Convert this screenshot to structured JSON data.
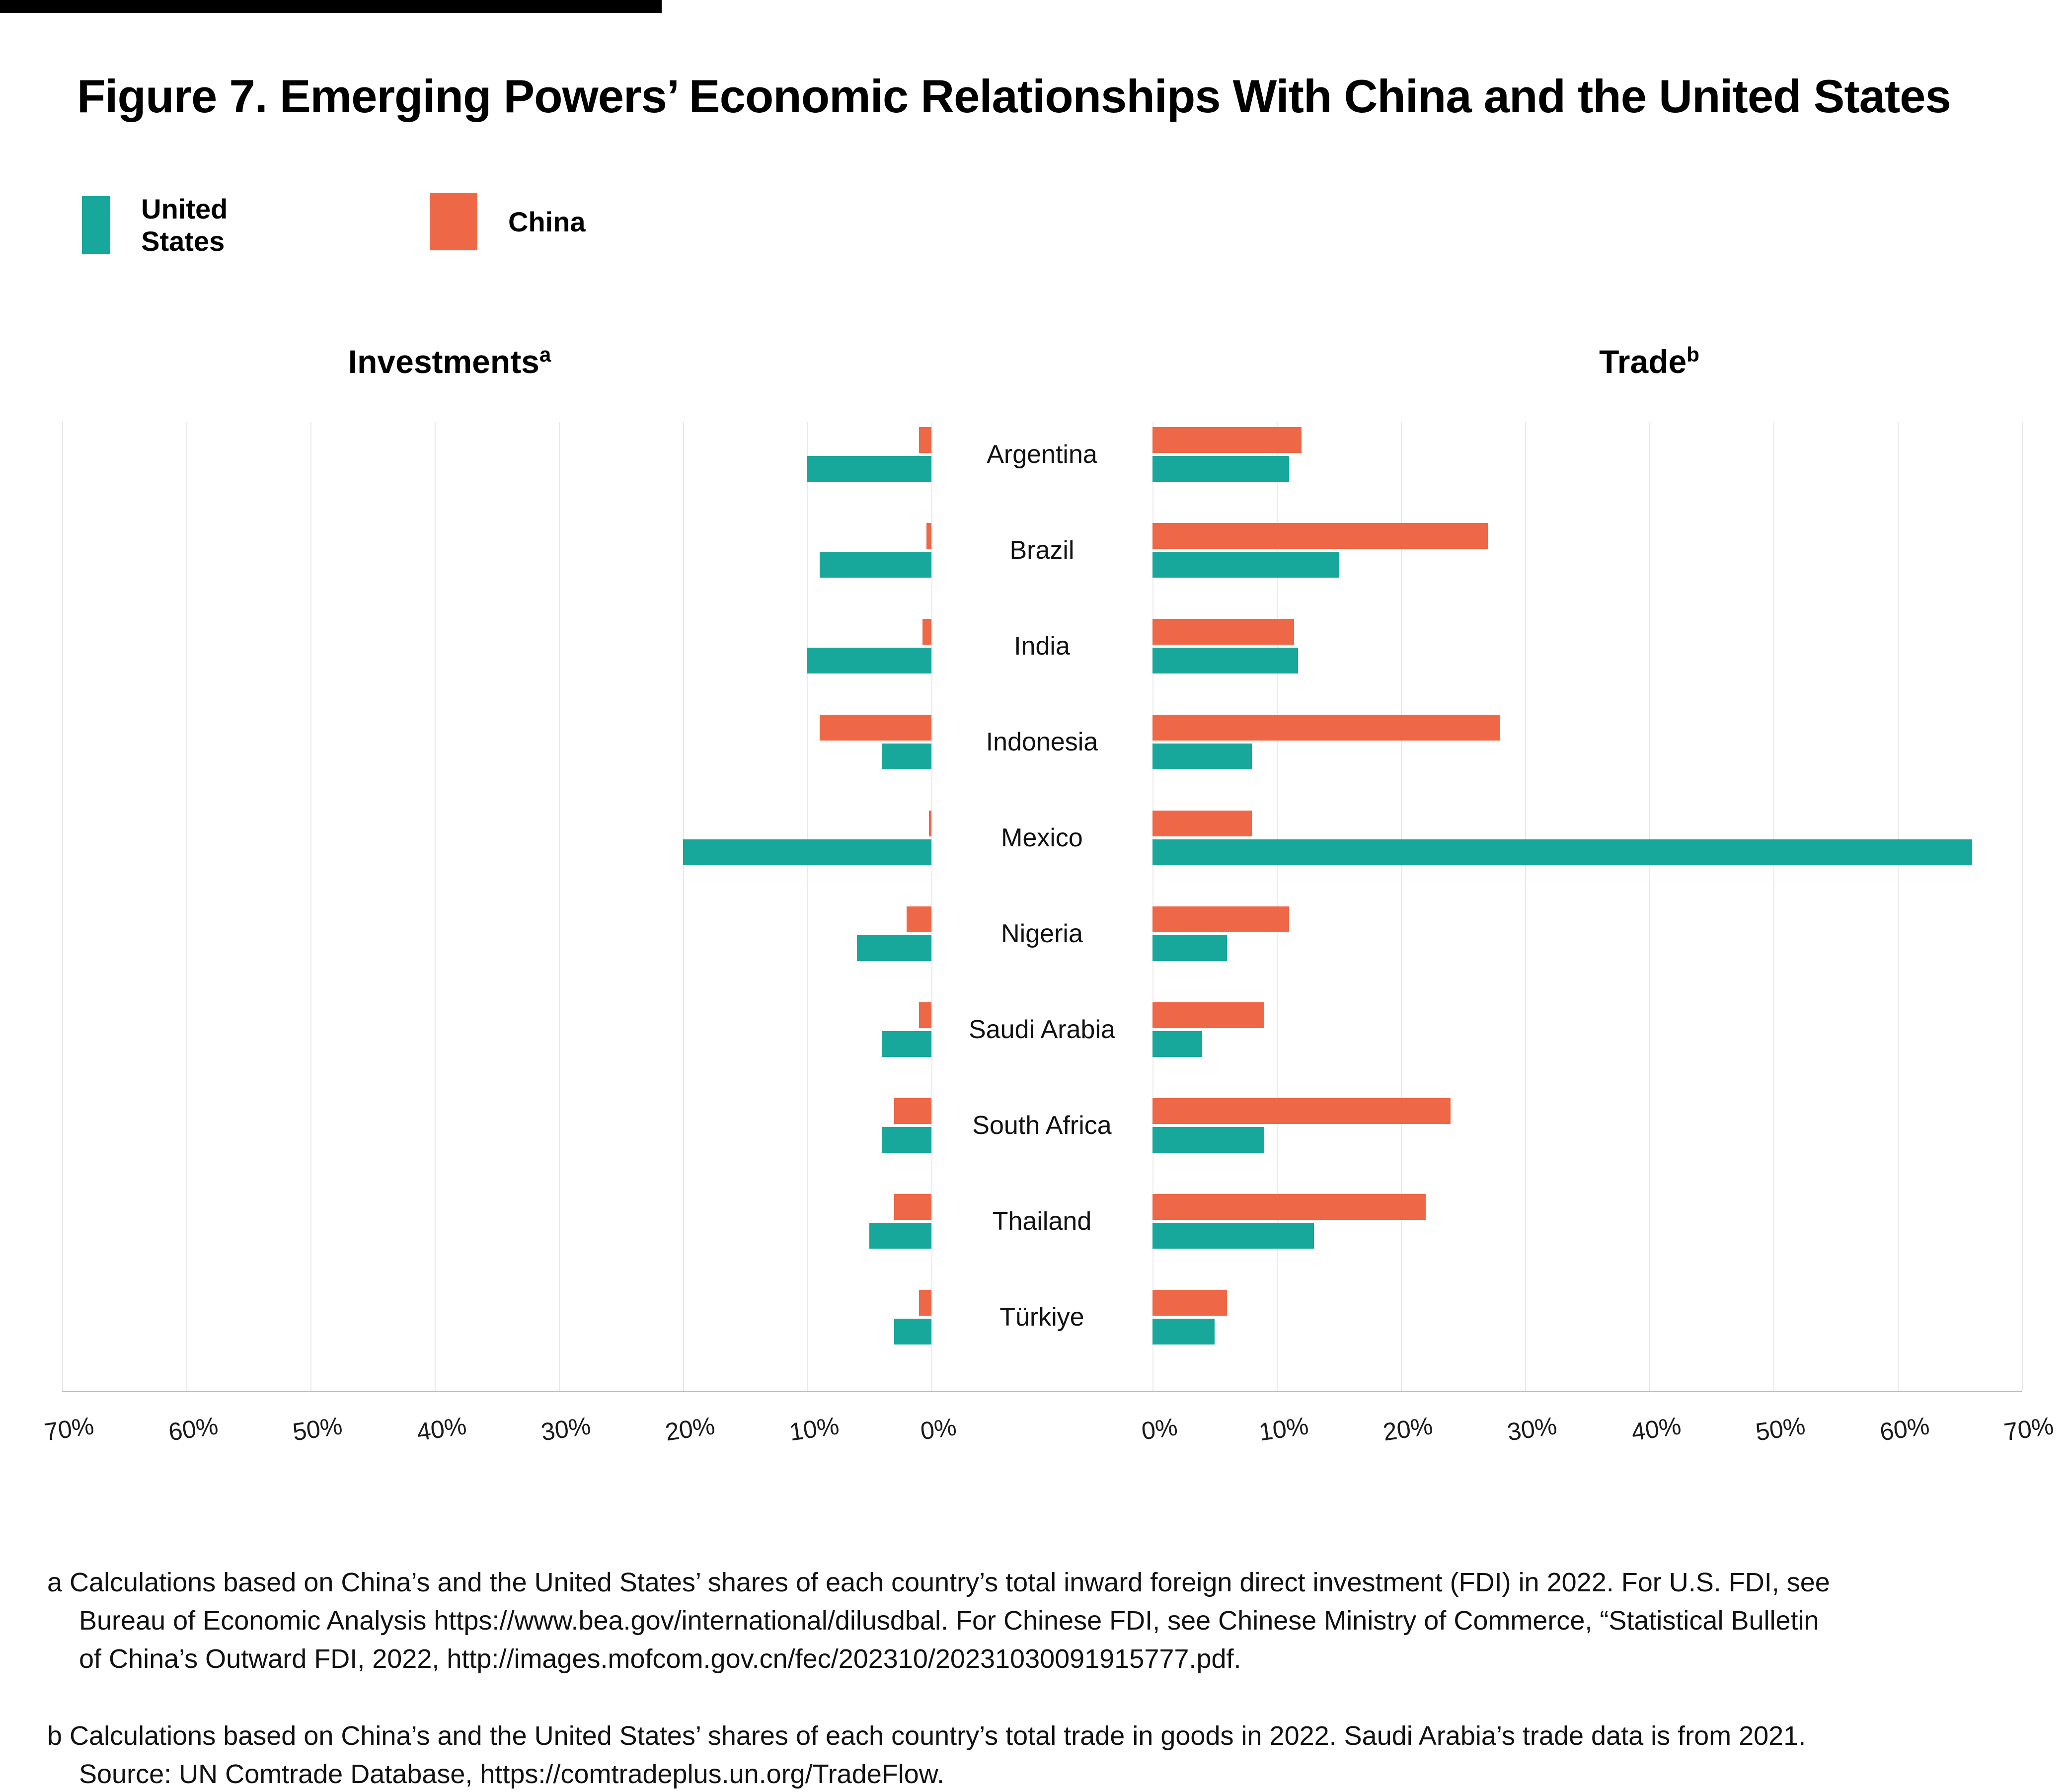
{
  "page": {
    "title": "Figure 7. Emerging Powers’ Economic Relationships With China and the United States"
  },
  "legend": {
    "items": [
      {
        "label": "United States",
        "color": "#17a79b"
      },
      {
        "label": "China",
        "color": "#ee6747"
      }
    ]
  },
  "colors": {
    "united_states": "#17a79b",
    "china": "#ee6747",
    "gridline": "#e8e8e8",
    "baseline": "#b9bdbf"
  },
  "chart_data": {
    "type": "bar",
    "orientation": "horizontal-diverging",
    "title": "Figure 7. Emerging Powers’ Economic Relationships With China and the United States",
    "categories": [
      "Argentina",
      "Brazil",
      "India",
      "Indonesia",
      "Mexico",
      "Nigeria",
      "Saudi Arabia",
      "South Africa",
      "Thailand",
      "Türkiye"
    ],
    "panels": [
      {
        "id": "investments",
        "label": "Investments",
        "footnote_mark": "a",
        "direction": "right-to-left",
        "xlim": [
          0,
          70
        ],
        "tick_labels": [
          "70%",
          "60%",
          "50%",
          "40%",
          "30%",
          "20%",
          "10%",
          "0%"
        ],
        "tick_values": [
          70,
          60,
          50,
          40,
          30,
          20,
          10,
          0
        ],
        "grid": true,
        "series": [
          {
            "name": "China",
            "values": [
              1,
              0.4,
              0.7,
              9,
              0.2,
              2,
              1,
              3,
              3,
              1
            ]
          },
          {
            "name": "United States",
            "values": [
              10,
              9,
              10,
              4,
              20,
              6,
              4,
              4,
              5,
              3
            ]
          }
        ]
      },
      {
        "id": "trade",
        "label": "Trade",
        "footnote_mark": "b",
        "direction": "left-to-right",
        "xlim": [
          0,
          70
        ],
        "tick_labels": [
          "0%",
          "10%",
          "20%",
          "30%",
          "40%",
          "50%",
          "60%",
          "70%"
        ],
        "tick_values": [
          0,
          10,
          20,
          30,
          40,
          50,
          60,
          70
        ],
        "grid": true,
        "series": [
          {
            "name": "China",
            "values": [
              12,
              27,
              11.4,
              28,
              8,
              11,
              9,
              24,
              22,
              6
            ]
          },
          {
            "name": "United States",
            "values": [
              11,
              15,
              11.7,
              8,
              66,
              6,
              4,
              9,
              13,
              5
            ]
          }
        ]
      }
    ],
    "legend_position": "top-left",
    "units": "%"
  },
  "footnotes": [
    {
      "mark": "a",
      "lines": [
        "Calculations based on China’s and the United States’ shares of each country’s total inward foreign direct investment (FDI) in 2022. For U.S. FDI, see",
        "Bureau of Economic Analysis https://www.bea.gov/international/dilusdbal. For Chinese FDI, see Chinese Ministry of Commerce, “Statistical Bulletin",
        "of China’s Outward FDI, 2022, http://images.mofcom.gov.cn/fec/202310/20231030091915777.pdf."
      ]
    },
    {
      "mark": "b",
      "lines": [
        "Calculations based on China’s and the United States’ shares of each country’s total trade in goods in 2022. Saudi Arabia’s trade data is from 2021.",
        "Source: UN Comtrade Database, https://comtradeplus.un.org/TradeFlow."
      ]
    }
  ]
}
